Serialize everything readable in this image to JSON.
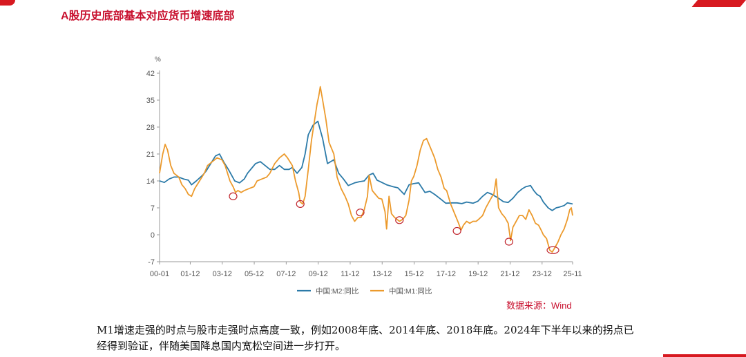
{
  "slide": {
    "title": "A股历史底部基本对应货币增速底部",
    "source": "数据来源：Wind",
    "caption": "M1增速走强的时点与股市走强时点高度一致，例如2008年底、2014年底、2018年底。2024年下半年以来的拐点已经得到验证，伴随美国降息国内宽松空间进一步打开。"
  },
  "colors": {
    "accent": "#c8102e",
    "m2": "#2b7aa8",
    "m1": "#ec9a2c",
    "axis": "#9a9a9a",
    "marker": "#c0242c"
  },
  "chart_data": {
    "type": "line",
    "y_unit": "%",
    "ylim": [
      -7,
      42
    ],
    "yticks": [
      -7,
      0,
      7,
      14,
      21,
      28,
      35,
      42
    ],
    "xlim": [
      2000.0,
      2025.83
    ],
    "xticks": [
      {
        "x": 2000.0,
        "label": "00-01"
      },
      {
        "x": 2001.92,
        "label": "01-12"
      },
      {
        "x": 2003.92,
        "label": "03-12"
      },
      {
        "x": 2005.92,
        "label": "05-12"
      },
      {
        "x": 2007.92,
        "label": "07-12"
      },
      {
        "x": 2009.92,
        "label": "09-12"
      },
      {
        "x": 2011.92,
        "label": "11-12"
      },
      {
        "x": 2013.92,
        "label": "13-12"
      },
      {
        "x": 2015.92,
        "label": "15-12"
      },
      {
        "x": 2017.92,
        "label": "17-12"
      },
      {
        "x": 2019.92,
        "label": "19-12"
      },
      {
        "x": 2021.92,
        "label": "21-12"
      },
      {
        "x": 2023.92,
        "label": "23-12"
      },
      {
        "x": 2025.83,
        "label": "25-11"
      }
    ],
    "legend_position": "bottom",
    "grid": false,
    "series": [
      {
        "name": "中国:M2:同比",
        "color": "#2b7aa8",
        "points": [
          [
            2000.0,
            14
          ],
          [
            2000.3,
            13.6
          ],
          [
            2000.6,
            14.5
          ],
          [
            2000.9,
            15
          ],
          [
            2001.2,
            15
          ],
          [
            2001.5,
            14.5
          ],
          [
            2001.8,
            14.2
          ],
          [
            2002.0,
            13
          ],
          [
            2002.3,
            14
          ],
          [
            2002.7,
            15.5
          ],
          [
            2002.9,
            16.5
          ],
          [
            2003.2,
            18.5
          ],
          [
            2003.5,
            20.5
          ],
          [
            2003.75,
            21
          ],
          [
            2004.0,
            19
          ],
          [
            2004.3,
            17
          ],
          [
            2004.5,
            15.5
          ],
          [
            2004.7,
            14
          ],
          [
            2005.0,
            13.5
          ],
          [
            2005.3,
            14.5
          ],
          [
            2005.5,
            16
          ],
          [
            2005.8,
            17.5
          ],
          [
            2006.0,
            18.5
          ],
          [
            2006.3,
            19
          ],
          [
            2006.6,
            18
          ],
          [
            2006.9,
            17
          ],
          [
            2007.2,
            17
          ],
          [
            2007.5,
            18
          ],
          [
            2007.8,
            17
          ],
          [
            2008.1,
            17
          ],
          [
            2008.3,
            17.5
          ],
          [
            2008.6,
            16
          ],
          [
            2008.9,
            17.5
          ],
          [
            2009.1,
            21
          ],
          [
            2009.3,
            26
          ],
          [
            2009.6,
            28.5
          ],
          [
            2009.9,
            29.5
          ],
          [
            2010.2,
            25
          ],
          [
            2010.5,
            18.5
          ],
          [
            2010.9,
            19.5
          ],
          [
            2011.2,
            16
          ],
          [
            2011.5,
            14.5
          ],
          [
            2011.8,
            12.8
          ],
          [
            2012.2,
            13.5
          ],
          [
            2012.5,
            13.8
          ],
          [
            2012.8,
            14
          ],
          [
            2013.1,
            15.5
          ],
          [
            2013.35,
            16
          ],
          [
            2013.6,
            14.2
          ],
          [
            2013.9,
            13.6
          ],
          [
            2014.2,
            13
          ],
          [
            2014.6,
            12.5
          ],
          [
            2014.9,
            12.2
          ],
          [
            2015.3,
            10.5
          ],
          [
            2015.6,
            13
          ],
          [
            2015.9,
            13.3
          ],
          [
            2016.2,
            13.5
          ],
          [
            2016.6,
            11
          ],
          [
            2016.9,
            11.3
          ],
          [
            2017.2,
            10.5
          ],
          [
            2017.6,
            9.2
          ],
          [
            2017.9,
            8.2
          ],
          [
            2018.3,
            8.3
          ],
          [
            2018.6,
            8.3
          ],
          [
            2018.9,
            8.1
          ],
          [
            2019.2,
            8.5
          ],
          [
            2019.6,
            8.2
          ],
          [
            2019.9,
            8.7
          ],
          [
            2020.2,
            10
          ],
          [
            2020.5,
            11
          ],
          [
            2020.8,
            10.5
          ],
          [
            2020.95,
            10.1
          ],
          [
            2021.2,
            9.5
          ],
          [
            2021.5,
            8.6
          ],
          [
            2021.8,
            8.4
          ],
          [
            2022.1,
            9.5
          ],
          [
            2022.4,
            11
          ],
          [
            2022.7,
            12
          ],
          [
            2022.9,
            12.5
          ],
          [
            2023.2,
            12.8
          ],
          [
            2023.4,
            11.5
          ],
          [
            2023.6,
            10.5
          ],
          [
            2023.8,
            10
          ],
          [
            2024.0,
            8.5
          ],
          [
            2024.3,
            7
          ],
          [
            2024.55,
            6.3
          ],
          [
            2024.8,
            7
          ],
          [
            2025.0,
            7.2
          ],
          [
            2025.3,
            7.6
          ],
          [
            2025.5,
            8.3
          ],
          [
            2025.83,
            8
          ]
        ]
      },
      {
        "name": "中国:M1:同比",
        "color": "#ec9a2c",
        "points": [
          [
            2000.0,
            16
          ],
          [
            2000.2,
            21
          ],
          [
            2000.35,
            23.5
          ],
          [
            2000.5,
            22
          ],
          [
            2000.7,
            18
          ],
          [
            2000.9,
            16
          ],
          [
            2001.2,
            15
          ],
          [
            2001.4,
            13
          ],
          [
            2001.6,
            12
          ],
          [
            2001.8,
            10.5
          ],
          [
            2002.0,
            10
          ],
          [
            2002.2,
            12
          ],
          [
            2002.5,
            14
          ],
          [
            2002.8,
            16
          ],
          [
            2003.0,
            18
          ],
          [
            2003.3,
            19
          ],
          [
            2003.6,
            20
          ],
          [
            2003.9,
            19.5
          ],
          [
            2004.1,
            18
          ],
          [
            2004.4,
            14
          ],
          [
            2004.6,
            12.5
          ],
          [
            2004.75,
            11
          ],
          [
            2004.9,
            11.5
          ],
          [
            2005.1,
            11
          ],
          [
            2005.3,
            11.5
          ],
          [
            2005.6,
            12
          ],
          [
            2005.9,
            12.5
          ],
          [
            2006.1,
            14
          ],
          [
            2006.4,
            14.5
          ],
          [
            2006.7,
            15
          ],
          [
            2006.9,
            16
          ],
          [
            2007.2,
            18.5
          ],
          [
            2007.5,
            20
          ],
          [
            2007.8,
            21
          ],
          [
            2008.0,
            20
          ],
          [
            2008.3,
            18
          ],
          [
            2008.5,
            14
          ],
          [
            2008.7,
            11
          ],
          [
            2008.8,
            8.5
          ],
          [
            2008.95,
            8
          ],
          [
            2009.1,
            10
          ],
          [
            2009.3,
            17
          ],
          [
            2009.5,
            24.5
          ],
          [
            2009.7,
            30
          ],
          [
            2009.85,
            34
          ],
          [
            2009.95,
            36
          ],
          [
            2010.05,
            38.5
          ],
          [
            2010.2,
            35
          ],
          [
            2010.4,
            30
          ],
          [
            2010.6,
            24
          ],
          [
            2010.9,
            21
          ],
          [
            2011.1,
            15
          ],
          [
            2011.35,
            12
          ],
          [
            2011.6,
            10
          ],
          [
            2011.8,
            8
          ],
          [
            2012.0,
            5
          ],
          [
            2012.2,
            3.5
          ],
          [
            2012.4,
            4.5
          ],
          [
            2012.6,
            4.5
          ],
          [
            2012.8,
            6.5
          ],
          [
            2013.0,
            10
          ],
          [
            2013.1,
            15.5
          ],
          [
            2013.3,
            11.5
          ],
          [
            2013.5,
            10.5
          ],
          [
            2013.7,
            9.5
          ],
          [
            2013.9,
            9.3
          ],
          [
            2014.1,
            6
          ],
          [
            2014.2,
            1.5
          ],
          [
            2014.35,
            10
          ],
          [
            2014.5,
            5.5
          ],
          [
            2014.7,
            4.5
          ],
          [
            2014.85,
            4
          ],
          [
            2015.0,
            3.5
          ],
          [
            2015.2,
            4
          ],
          [
            2015.4,
            5
          ],
          [
            2015.6,
            9
          ],
          [
            2015.75,
            14
          ],
          [
            2015.9,
            15.2
          ],
          [
            2016.1,
            18
          ],
          [
            2016.3,
            22
          ],
          [
            2016.5,
            24.5
          ],
          [
            2016.7,
            25
          ],
          [
            2016.9,
            23
          ],
          [
            2017.0,
            22
          ],
          [
            2017.2,
            20
          ],
          [
            2017.4,
            17
          ],
          [
            2017.6,
            15
          ],
          [
            2017.8,
            12
          ],
          [
            2017.95,
            11.5
          ],
          [
            2018.2,
            8
          ],
          [
            2018.5,
            5
          ],
          [
            2018.7,
            3
          ],
          [
            2018.85,
            1.2
          ],
          [
            2019.0,
            2.5
          ],
          [
            2019.2,
            3.5
          ],
          [
            2019.4,
            3
          ],
          [
            2019.6,
            3.5
          ],
          [
            2019.8,
            3.5
          ],
          [
            2019.95,
            4
          ],
          [
            2020.2,
            5
          ],
          [
            2020.4,
            7
          ],
          [
            2020.6,
            8.5
          ],
          [
            2020.8,
            10
          ],
          [
            2020.9,
            10.5
          ],
          [
            2021.05,
            14.5
          ],
          [
            2021.2,
            7
          ],
          [
            2021.4,
            5.5
          ],
          [
            2021.6,
            4.5
          ],
          [
            2021.8,
            3
          ],
          [
            2021.95,
            -1.5
          ],
          [
            2022.1,
            2
          ],
          [
            2022.3,
            3.5
          ],
          [
            2022.5,
            5
          ],
          [
            2022.7,
            5
          ],
          [
            2022.9,
            4
          ],
          [
            2023.1,
            6.5
          ],
          [
            2023.3,
            5
          ],
          [
            2023.5,
            3
          ],
          [
            2023.7,
            2.5
          ],
          [
            2023.85,
            1.3
          ],
          [
            2024.0,
            0
          ],
          [
            2024.2,
            -1
          ],
          [
            2024.4,
            -4
          ],
          [
            2024.55,
            -4.5
          ],
          [
            2024.7,
            -3.5
          ],
          [
            2024.9,
            -2
          ],
          [
            2025.1,
            0
          ],
          [
            2025.3,
            1.5
          ],
          [
            2025.5,
            4
          ],
          [
            2025.65,
            6.5
          ],
          [
            2025.75,
            7
          ],
          [
            2025.83,
            5
          ]
        ]
      }
    ],
    "markers": [
      {
        "x": 2004.6,
        "y": 10
      },
      {
        "x": 2008.8,
        "y": 8
      },
      {
        "x": 2012.55,
        "y": 5.8
      },
      {
        "x": 2015.0,
        "y": 3.8
      },
      {
        "x": 2018.6,
        "y": 1
      },
      {
        "x": 2021.85,
        "y": -1.8
      },
      {
        "x": 2024.6,
        "y": -4
      }
    ]
  }
}
